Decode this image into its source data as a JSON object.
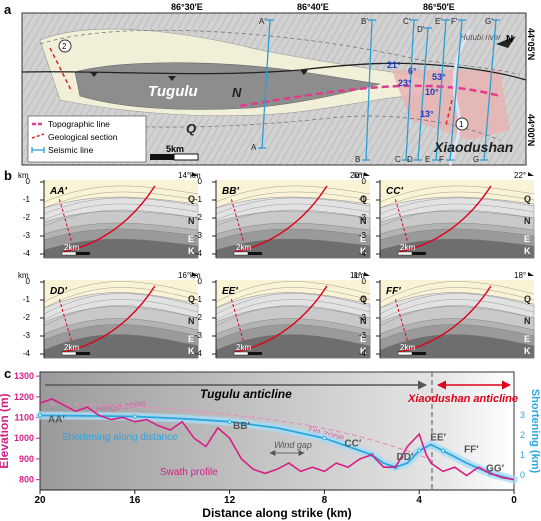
{
  "panel_a": {
    "label": "a",
    "lon_ticks": [
      "86°30′E",
      "86°40′E",
      "86°50′E"
    ],
    "lat_ticks": [
      "44°05′N",
      "44°00′N"
    ],
    "place_names": {
      "tugulu": "Tugulu",
      "xiaodushan": "Xiaodushan",
      "river": "Hutubi river"
    },
    "units": {
      "q": "Q",
      "n": "N"
    },
    "north": "N",
    "seismic_top": [
      "A′",
      "B′",
      "C′",
      "D′",
      "E′",
      "F′",
      "G′"
    ],
    "seismic_bottom": [
      "A",
      "B",
      "C",
      "D",
      "E",
      "F",
      "G"
    ],
    "dips": [
      "21°",
      "6°",
      "23°",
      "53°",
      "10°",
      "13°"
    ],
    "circles": [
      "1",
      "2"
    ],
    "scalebar": "5km",
    "legend": [
      {
        "label": "Topographic line",
        "color": "#e23a8f"
      },
      {
        "label": "Geological section",
        "color": "#d62828"
      },
      {
        "label": "Seismic line",
        "color": "#2a9fd6"
      }
    ]
  },
  "panel_b": {
    "label": "b",
    "sections": [
      {
        "name": "AA′",
        "angle": "14°"
      },
      {
        "name": "BB′",
        "angle": "20°"
      },
      {
        "name": "CC′",
        "angle": "22°"
      },
      {
        "name": "DD′",
        "angle": "16°"
      },
      {
        "name": "EE′",
        "angle": "11°"
      },
      {
        "name": "FF′",
        "angle": "18°"
      }
    ],
    "depth_label": "km",
    "depth_ticks": [
      "0",
      "-1",
      "-2",
      "-3",
      "-4"
    ],
    "formations": [
      "Q",
      "N",
      "E",
      "K"
    ],
    "scalebar": "2km"
  },
  "panel_c": {
    "label": "c",
    "tugulu_title": "Tugulu anticline",
    "xiaodushan_title": "Xiaodushan anticline",
    "hinge_label": "Hinge zone",
    "tip_label": "Tip zone",
    "wind_gap": "Wind gap",
    "shortening_label": "Shortening along distance",
    "swath_label": "Swath profile",
    "section_labels": [
      "AA′",
      "BB′",
      "CC′",
      "DD′",
      "EE′",
      "FF′",
      "GG′"
    ]
  },
  "chart_data": {
    "type": "line",
    "xlabel": "Distance along strike (km)",
    "ylabel": "Elevation (m)",
    "y2label": "Shortening (km)",
    "xlim": [
      20,
      0
    ],
    "x_ticks": [
      20,
      16,
      12,
      8,
      4,
      0
    ],
    "ylim": [
      750,
      1320
    ],
    "y_ticks": [
      800,
      900,
      1000,
      1100,
      1200,
      1300
    ],
    "y2_ticks": [
      0,
      1,
      2,
      3
    ],
    "grid": false,
    "series": [
      {
        "name": "Swath profile",
        "color": "#d61f86",
        "x": [
          20,
          19.5,
          19,
          18.5,
          18,
          17.5,
          17,
          16.5,
          16,
          15.5,
          15,
          14.5,
          14,
          13.5,
          13,
          12.5,
          12,
          11.5,
          11,
          10.5,
          10,
          9.5,
          9,
          8.5,
          8,
          7.5,
          7,
          6.5,
          6,
          5.5,
          5,
          4.5,
          4,
          3.7,
          3.5,
          3,
          2.5,
          2,
          1.5,
          1,
          0.5,
          0
        ],
        "y": [
          1170,
          1190,
          1160,
          1130,
          1150,
          1110,
          1090,
          1100,
          1080,
          1090,
          1060,
          1040,
          1080,
          1000,
          960,
          1050,
          1000,
          900,
          850,
          830,
          850,
          880,
          840,
          860,
          840,
          880,
          860,
          900,
          920,
          860,
          860,
          960,
          1020,
          920,
          880,
          840,
          860,
          820,
          860,
          830,
          810,
          800
        ]
      },
      {
        "name": "Shortening along distance",
        "color": "#2aa7e0",
        "x": [
          20,
          18,
          16,
          14,
          12,
          10,
          8,
          7,
          6,
          5.5,
          5,
          4.5,
          4,
          3.5,
          3,
          2,
          1,
          0
        ],
        "y": [
          1110,
          1108,
          1105,
          1095,
          1080,
          1050,
          1000,
          960,
          920,
          880,
          860,
          880,
          940,
          970,
          940,
          880,
          830,
          800
        ]
      }
    ]
  }
}
